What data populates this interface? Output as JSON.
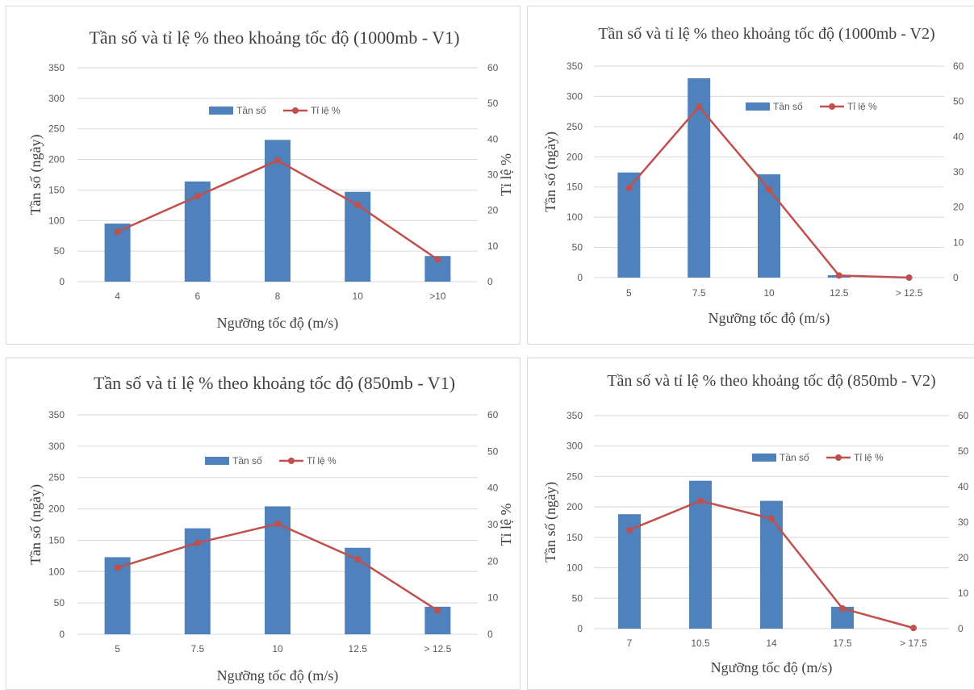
{
  "colors": {
    "bar": "#4f81bd",
    "line": "#c0504d"
  },
  "chart_data": [
    {
      "type": "bar",
      "title": "Tần số và tỉ lệ % theo khoảng tốc độ (1000mb - V1)",
      "xlabel": "Ngưỡng tốc độ (m/s)",
      "ylabel": "Tần số (ngày)",
      "y2label": "Tỉ lệ %",
      "categories": [
        "4",
        "6",
        "8",
        "10",
        ">10"
      ],
      "series": [
        {
          "name": "Tần số",
          "type": "bar",
          "axis": "left",
          "values": [
            95,
            164,
            232,
            147,
            42
          ]
        },
        {
          "name": "Tỉ lệ %",
          "type": "line",
          "axis": "right",
          "values": [
            14,
            24,
            34,
            21.5,
            6.2
          ]
        }
      ],
      "ylim": [
        0,
        350
      ],
      "yticks": [
        "0",
        "50",
        "100",
        "150",
        "200",
        "250",
        "300",
        "350"
      ],
      "y2lim": [
        0,
        60
      ],
      "y2ticks": [
        "0",
        "10",
        "20",
        "30",
        "40",
        "50",
        "60"
      ],
      "grid": true,
      "legend": "top-center"
    },
    {
      "type": "bar",
      "title": "Tần số và tỉ lệ % theo khoảng tốc độ (1000mb - V2)",
      "xlabel": "Ngưỡng tốc độ (m/s)",
      "ylabel": "Tần số (ngày)",
      "y2label": "",
      "categories": [
        "5",
        "7.5",
        "10",
        "12.5",
        "> 12.5"
      ],
      "series": [
        {
          "name": "Tần số",
          "type": "bar",
          "axis": "left",
          "values": [
            174,
            330,
            171,
            4,
            0
          ]
        },
        {
          "name": "Tỉ lệ %",
          "type": "line",
          "axis": "right",
          "values": [
            25.5,
            48.5,
            25,
            0.6,
            0
          ]
        }
      ],
      "ylim": [
        0,
        350
      ],
      "yticks": [
        "0",
        "50",
        "100",
        "150",
        "200",
        "250",
        "300",
        "350"
      ],
      "y2lim": [
        0,
        60
      ],
      "y2ticks": [
        "0",
        "10",
        "20",
        "30",
        "40",
        "50",
        "60"
      ],
      "grid": true,
      "legend": "top-right"
    },
    {
      "type": "bar",
      "title": "Tần số và tỉ lệ % theo khoảng tốc độ (850mb - V1)",
      "xlabel": "Ngưỡng tốc độ (m/s)",
      "ylabel": "Tần số (ngày)",
      "y2label": "Tỉ lệ %",
      "categories": [
        "5",
        "7.5",
        "10",
        "12.5",
        "> 12.5"
      ],
      "series": [
        {
          "name": "Tần số",
          "type": "bar",
          "axis": "left",
          "values": [
            123,
            169,
            204,
            138,
            44
          ]
        },
        {
          "name": "Tỉ lệ %",
          "type": "line",
          "axis": "right",
          "values": [
            18.2,
            25,
            30.2,
            20.5,
            6.5
          ]
        }
      ],
      "ylim": [
        0,
        350
      ],
      "yticks": [
        "0",
        "50",
        "100",
        "150",
        "200",
        "250",
        "300",
        "350"
      ],
      "y2lim": [
        0,
        60
      ],
      "y2ticks": [
        "0",
        "10",
        "20",
        "30",
        "40",
        "50",
        "60"
      ],
      "grid": true,
      "legend": "top-center"
    },
    {
      "type": "bar",
      "title": "Tần số và tỉ lệ % theo khoảng tốc độ (850mb - V2)",
      "xlabel": "Ngưỡng tốc độ (m/s)",
      "ylabel": "Tần số (ngày)",
      "y2label": "",
      "categories": [
        "7",
        "10.5",
        "14",
        "17.5",
        "> 17.5"
      ],
      "series": [
        {
          "name": "Tần số",
          "type": "bar",
          "axis": "left",
          "values": [
            188,
            243,
            210,
            36,
            0
          ]
        },
        {
          "name": "Tỉ lệ %",
          "type": "line",
          "axis": "right",
          "values": [
            27.8,
            36,
            31,
            5.7,
            0.2
          ]
        }
      ],
      "ylim": [
        0,
        350
      ],
      "yticks": [
        "0",
        "50",
        "100",
        "150",
        "200",
        "250",
        "300",
        "350"
      ],
      "y2lim": [
        0,
        60
      ],
      "y2ticks": [
        "0",
        "10",
        "20",
        "30",
        "40",
        "50",
        "60"
      ],
      "grid": true,
      "legend": "top-right"
    }
  ]
}
